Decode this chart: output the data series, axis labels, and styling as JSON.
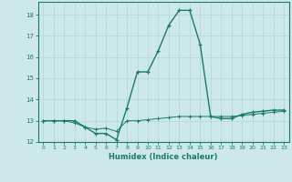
{
  "xlabel": "Humidex (Indice chaleur)",
  "x": [
    0,
    1,
    2,
    3,
    4,
    5,
    6,
    7,
    8,
    9,
    10,
    11,
    12,
    13,
    14,
    15,
    16,
    17,
    18,
    19,
    20,
    21,
    22,
    23
  ],
  "line1_y": [
    13,
    13,
    13,
    13,
    12.7,
    12.4,
    12.4,
    12.1,
    13.6,
    15.3,
    15.3,
    16.3,
    17.5,
    18.2,
    18.2,
    16.6,
    13.2,
    13.1,
    13.1,
    13.3,
    13.4,
    13.45,
    13.5,
    13.5
  ],
  "line2_y": [
    13,
    13,
    13,
    12.9,
    12.7,
    12.6,
    12.65,
    12.5,
    13.0,
    13.0,
    13.05,
    13.1,
    13.15,
    13.2,
    13.2,
    13.2,
    13.2,
    13.2,
    13.2,
    13.25,
    13.3,
    13.35,
    13.4,
    13.45
  ],
  "line_color": "#1a7a6e",
  "bg_color": "#cde8e8",
  "grid_color": "#b8d8d8",
  "ylim": [
    12,
    18.6
  ],
  "xlim": [
    -0.5,
    23.5
  ],
  "yticks": [
    12,
    13,
    14,
    15,
    16,
    17,
    18
  ],
  "xticks": [
    0,
    1,
    2,
    3,
    4,
    5,
    6,
    7,
    8,
    9,
    10,
    11,
    12,
    13,
    14,
    15,
    16,
    17,
    18,
    19,
    20,
    21,
    22,
    23
  ]
}
